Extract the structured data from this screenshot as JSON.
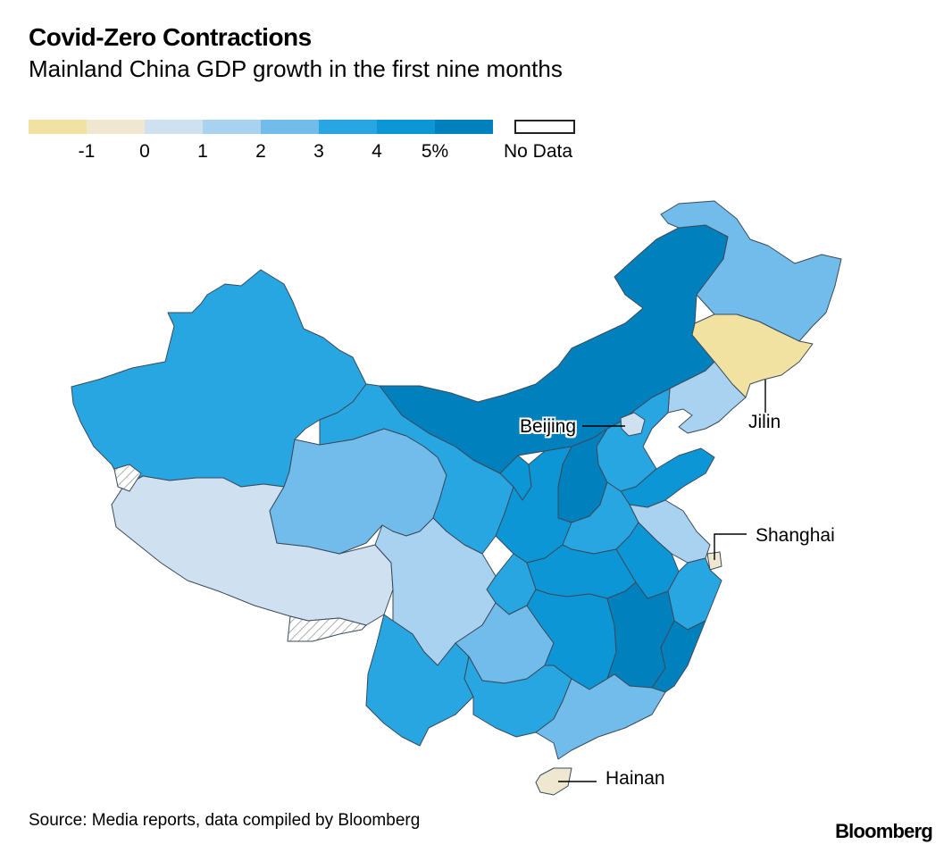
{
  "chart_data": {
    "type": "choropleth",
    "title": "Covid-Zero Contractions",
    "subtitle": "Mainland China GDP growth in the first nine months",
    "legend": {
      "bins": [
        {
          "min": -2,
          "max": -1,
          "color": "#f2e2a1"
        },
        {
          "min": -1,
          "max": 0,
          "color": "#efe7cf"
        },
        {
          "min": 0,
          "max": 1,
          "color": "#cfe0f1"
        },
        {
          "min": 1,
          "max": 2,
          "color": "#a9d1f0"
        },
        {
          "min": 2,
          "max": 3,
          "color": "#72bcec"
        },
        {
          "min": 3,
          "max": 4,
          "color": "#27a6e2"
        },
        {
          "min": 4,
          "max": 5,
          "color": "#0d96d6"
        },
        {
          "min": 5,
          "max": 6,
          "color": "#0080bd"
        }
      ],
      "tick_labels": [
        "-1",
        "0",
        "1",
        "2",
        "3",
        "4",
        "5%"
      ],
      "no_data_label": "No Data"
    },
    "regions": [
      {
        "name": "Xinjiang",
        "bin": "3 to 4"
      },
      {
        "name": "Tibet",
        "bin": "0 to 1"
      },
      {
        "name": "Qinghai",
        "bin": "2 to 3"
      },
      {
        "name": "Gansu",
        "bin": "3 to 4"
      },
      {
        "name": "Inner Mongolia",
        "bin": "5+"
      },
      {
        "name": "Heilongjiang",
        "bin": "2 to 3"
      },
      {
        "name": "Jilin",
        "bin": "below -1"
      },
      {
        "name": "Liaoning",
        "bin": "1 to 2"
      },
      {
        "name": "Beijing",
        "bin": "0 to 1"
      },
      {
        "name": "Shanxi",
        "bin": "5+"
      },
      {
        "name": "Sichuan",
        "bin": "1 to 2"
      },
      {
        "name": "Yunnan",
        "bin": "3 to 4"
      },
      {
        "name": "Guizhou",
        "bin": "2 to 3"
      },
      {
        "name": "Guangxi",
        "bin": "3 to 4"
      },
      {
        "name": "Guangdong",
        "bin": "2 to 3"
      },
      {
        "name": "Jiangxi",
        "bin": "5+"
      },
      {
        "name": "Fujian",
        "bin": "5+"
      },
      {
        "name": "Shanghai",
        "bin": "-1 to 0"
      },
      {
        "name": "Hainan",
        "bin": "-1 to 0"
      }
    ],
    "annotations": [
      "Beijing",
      "Jilin",
      "Shanghai",
      "Hainan"
    ]
  },
  "source": "Source: Media reports, data compiled by Bloomberg",
  "brand": "Bloomberg"
}
